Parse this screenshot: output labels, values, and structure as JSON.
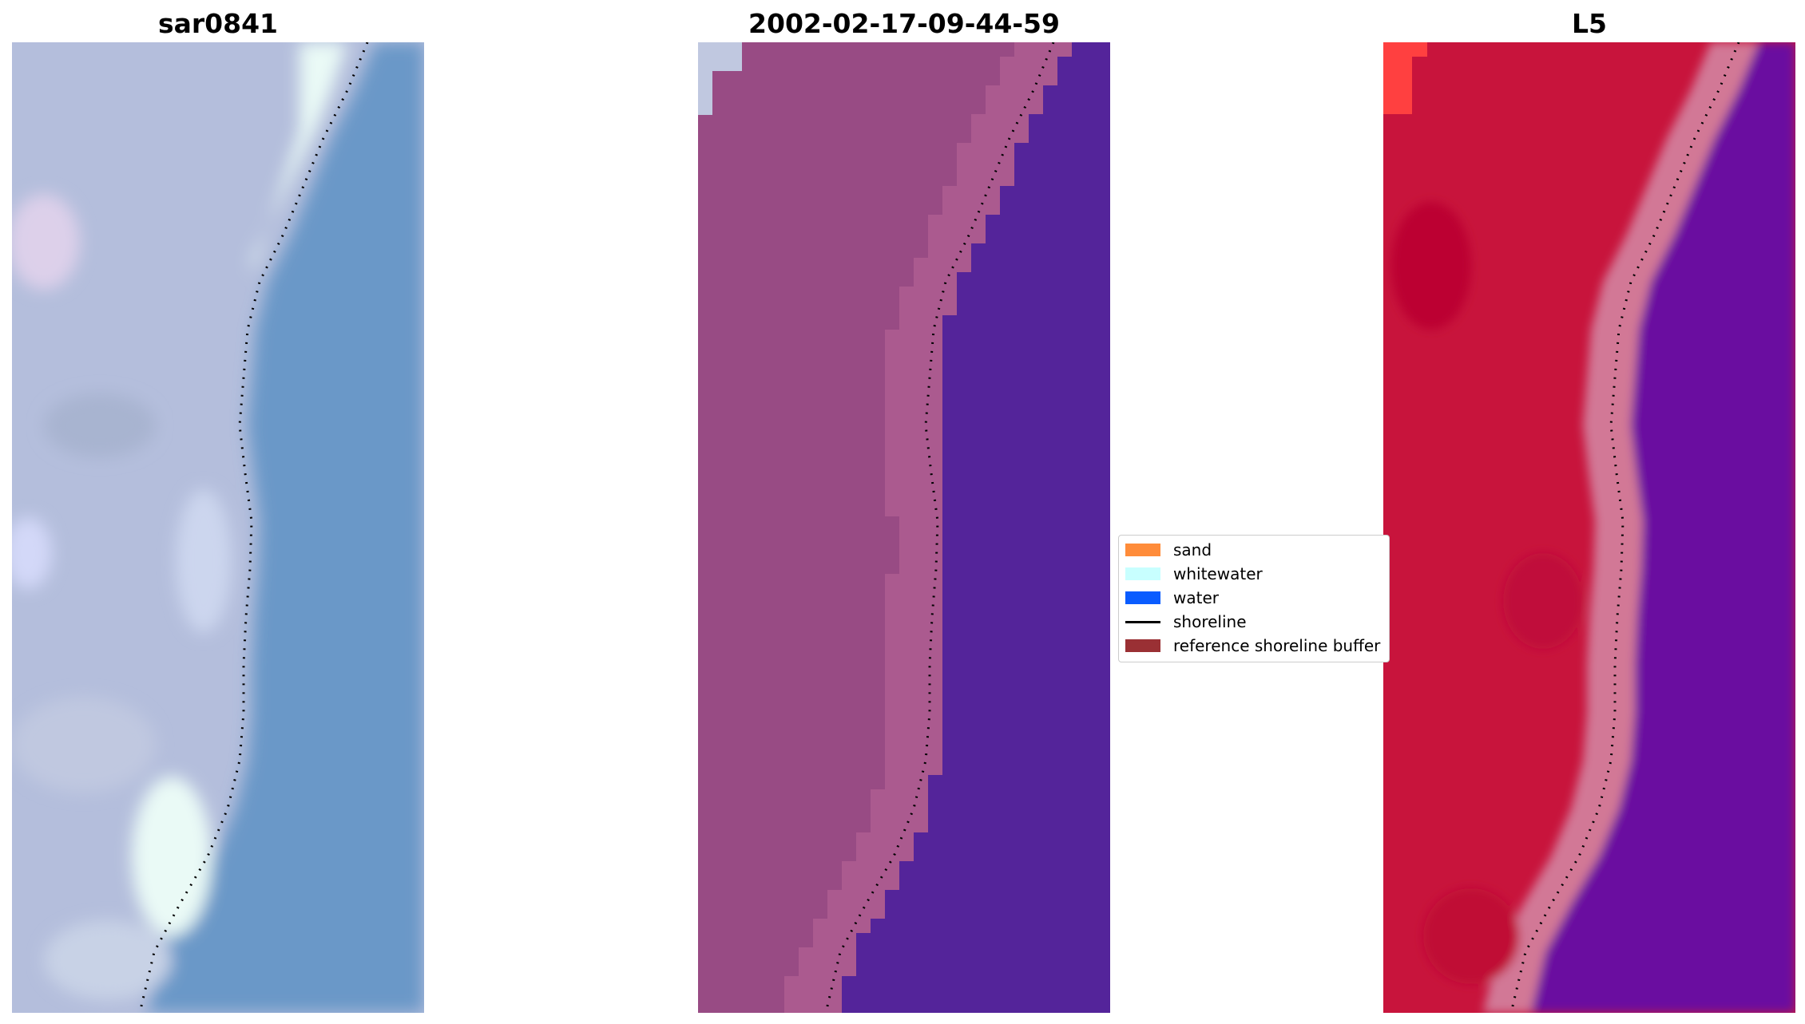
{
  "panels": [
    {
      "title": "sar0841"
    },
    {
      "title": "2002-02-17-09-44-59"
    },
    {
      "title": "L5"
    }
  ],
  "legend": {
    "items": [
      {
        "label": "sand",
        "color": "#ff8c3a",
        "kind": "patch"
      },
      {
        "label": "whitewater",
        "color": "#c8ffff",
        "kind": "patch"
      },
      {
        "label": "water",
        "color": "#0a5cff",
        "kind": "patch"
      },
      {
        "label": "shoreline",
        "color": "#000000",
        "kind": "line"
      },
      {
        "label": "reference shoreline buffer",
        "color": "#9a3034",
        "kind": "patch"
      }
    ]
  },
  "colors": {
    "rgb_land": "#b4bedc",
    "rgb_water": "#6a98c8",
    "rgb_surf": "#eafaf6",
    "class_land": "#984b84",
    "class_water": "#54249a",
    "class_buffer": "#b86496",
    "nir_land": "#c8143c",
    "nir_water": "#6a0aa0",
    "nir_band": "#d27896"
  }
}
